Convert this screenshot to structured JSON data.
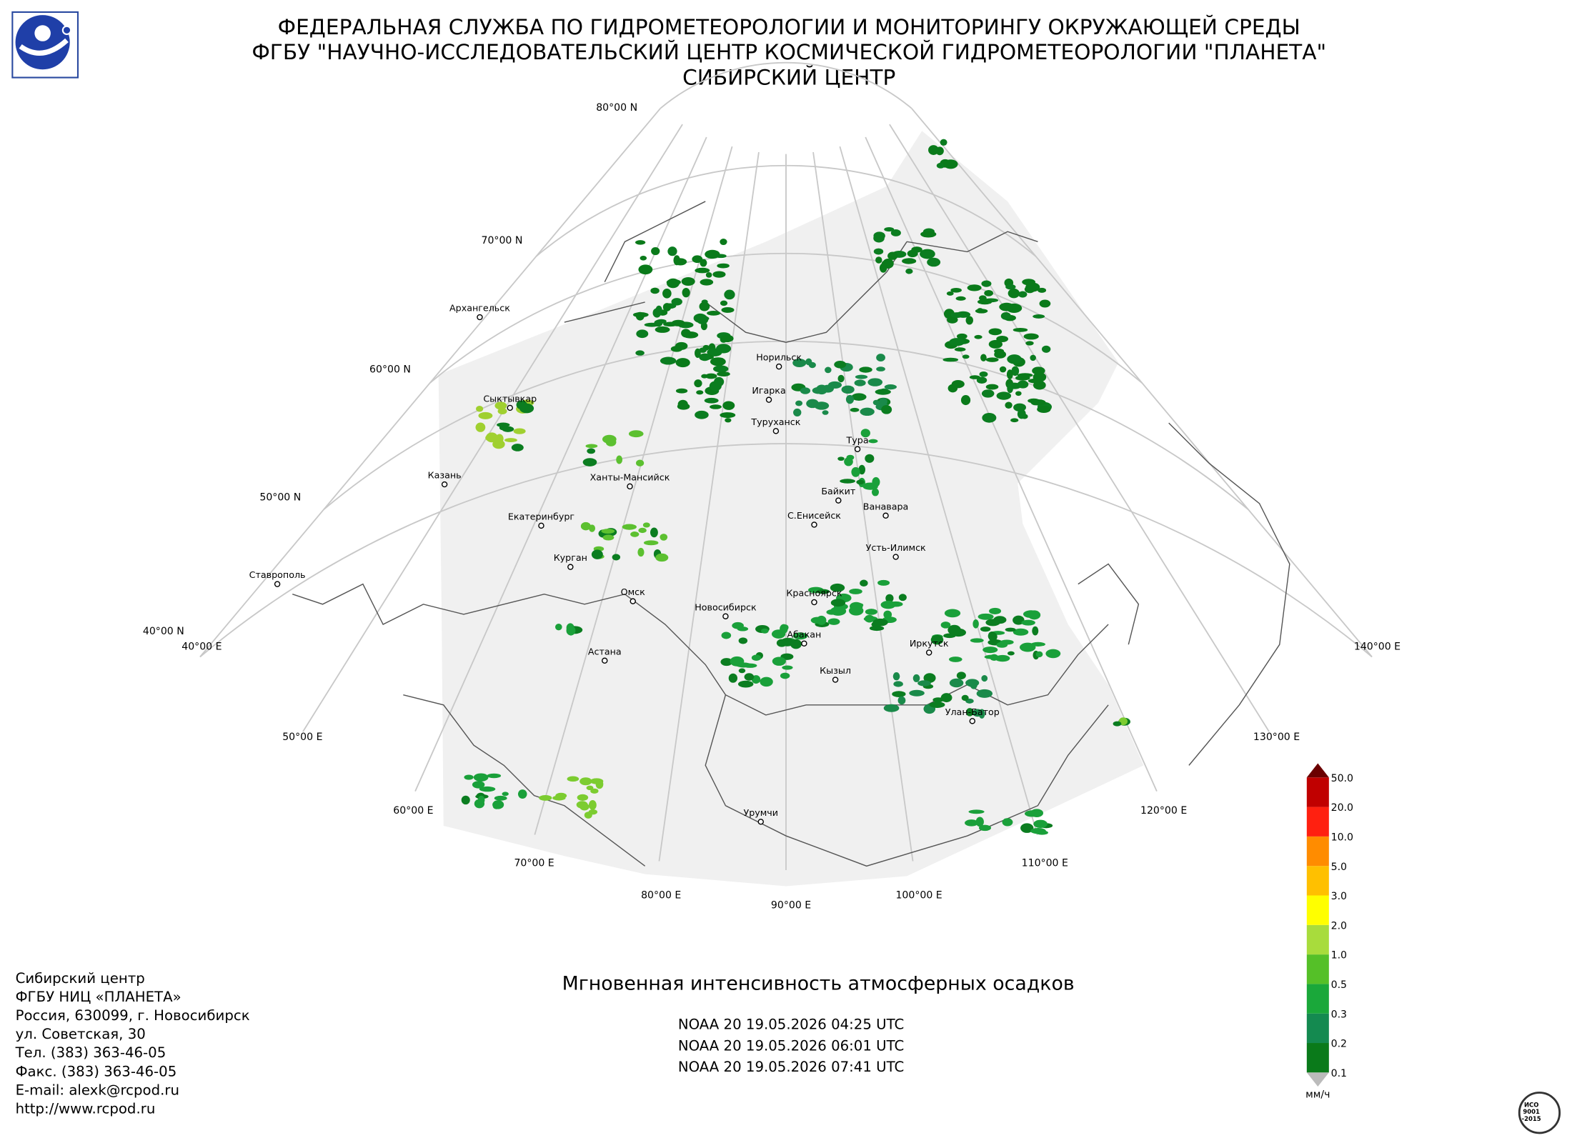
{
  "header": {
    "lines": [
      "ФЕДЕРАЛЬНАЯ СЛУЖБА ПО ГИДРОМЕТЕОРОЛОГИИ И МОНИТОРИНГУ ОКРУЖАЮЩЕЙ СРЕДЫ",
      "ФГБУ \"НАУЧНО-ИССЛЕДОВАТЕЛЬСКИЙ ЦЕНТР КОСМИЧЕСКОЙ ГИДРОМЕТЕОРОЛОГИИ \"ПЛАНЕТА\"",
      "СИБИРСКИЙ ЦЕНТР"
    ]
  },
  "graticule_labels": [
    "80°00 N",
    "70°00 N",
    "60°00 N",
    "50°00 N",
    "40°00 N",
    "40°00 E",
    "50°00 E",
    "60°00 E",
    "70°00 E",
    "80°00 E",
    "90°00 E",
    "100°00 E",
    "110°00 E",
    "120°00 E",
    "130°00 E",
    "140°00 E"
  ],
  "cities": [
    "Архангельск",
    "Сыктывкар",
    "Казань",
    "Ставрополь",
    "Ханты-Мансийск",
    "Екатеринбург",
    "Курган",
    "Омск",
    "Астана",
    "Новосибирск",
    "Норильск",
    "Игарка",
    "Туруханск",
    "Тура",
    "Байкит",
    "Ванавара",
    "С.Енисейск",
    "Усть-Илимск",
    "Красноярск",
    "Абакан",
    "Иркутск",
    "Кызыл",
    "Улан-Батор",
    "Урумчи"
  ],
  "title": "Мгновенная интенсивность атмосферных осадков",
  "passes": [
    "NOAA 20 19.05.2026  04:25 UTC",
    "NOAA 20 19.05.2026  06:01 UTC",
    "NOAA 20 19.05.2026  07:41 UTC"
  ],
  "colorbar": {
    "labels": [
      "0.1",
      "0.2",
      "0.3",
      "0.5",
      "1.0",
      "2.0",
      "3.0",
      "5.0",
      "10.0",
      "20.0",
      "50.0"
    ],
    "unit": "мм/ч"
  },
  "footer": {
    "lines": [
      "Сибирский центр",
      "ФГБУ НИЦ «ПЛАНЕТА»",
      "Россия, 630099, г. Новосибирск",
      "ул. Советская, 30",
      "Тел. (383) 363-46-05",
      "Факс. (383) 363-46-05",
      "E-mail: alexk@rcpod.ru",
      "http://www.rcpod.ru"
    ]
  },
  "iso_logo": {
    "lines": [
      "ИСО",
      "9001",
      "-2015"
    ]
  }
}
